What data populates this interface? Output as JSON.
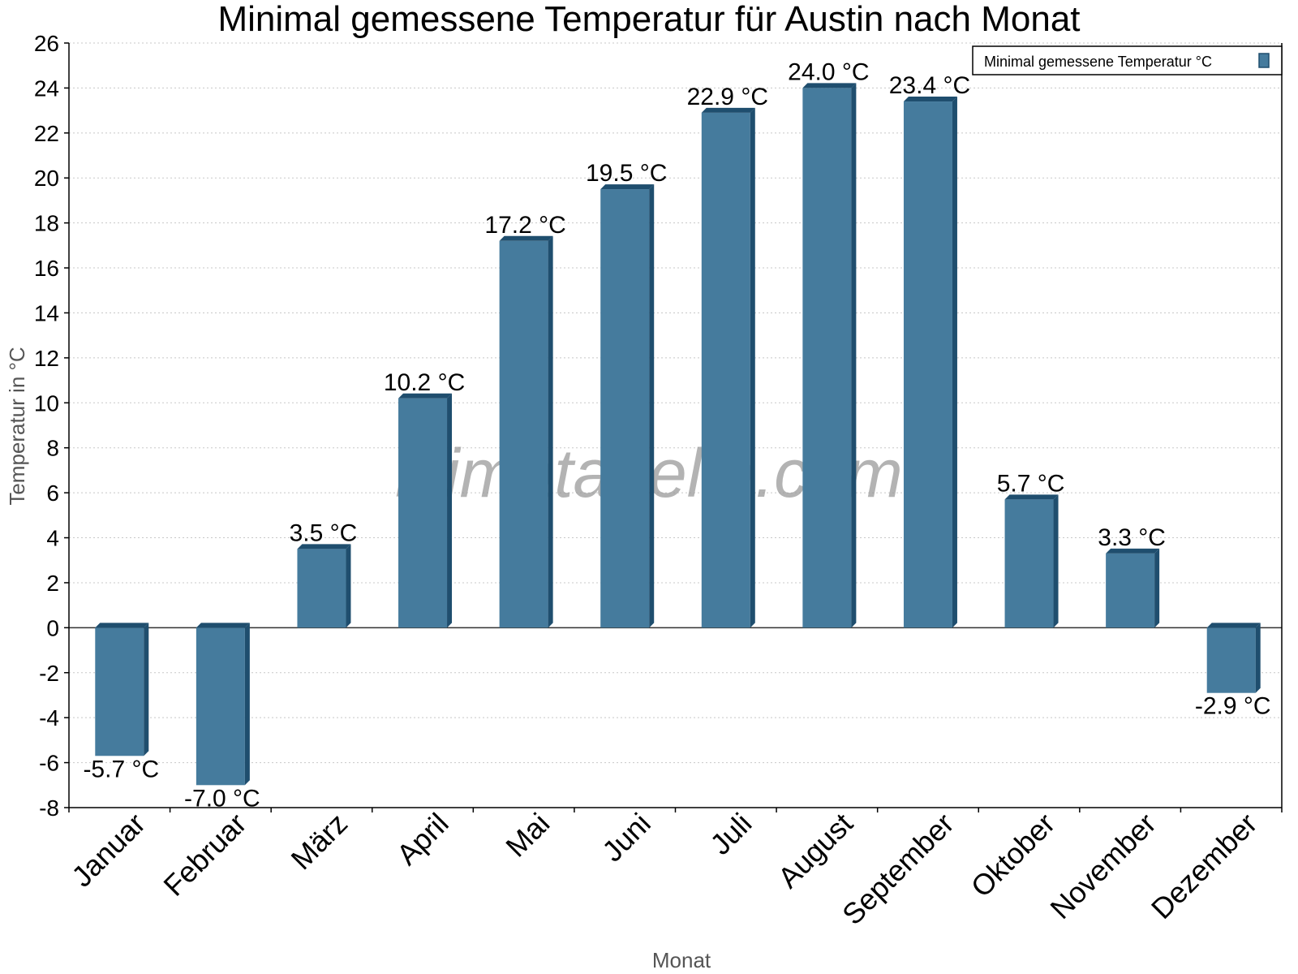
{
  "chart_data": {
    "type": "bar",
    "title": "Minimal gemessene Temperatur für Austin nach Monat",
    "xlabel": "Monat",
    "ylabel": "Temperatur in °C",
    "categories": [
      "Januar",
      "Februar",
      "März",
      "April",
      "Mai",
      "Juni",
      "Juli",
      "August",
      "September",
      "Oktober",
      "November",
      "Dezember"
    ],
    "series": [
      {
        "name": "Minimal gemessene Temperatur °C",
        "values": [
          -5.7,
          -7.0,
          3.5,
          10.2,
          17.2,
          19.5,
          22.9,
          24.0,
          23.4,
          5.7,
          3.3,
          -2.9
        ],
        "labels": [
          "-5.7 °C",
          "-7.0 °C",
          "3.5 °C",
          "10.2 °C",
          "17.2 °C",
          "19.5 °C",
          "22.9 °C",
          "24.0 °C",
          "23.4 °C",
          "5.7 °C",
          "3.3 °C",
          "-2.9 °C"
        ],
        "color": "#457b9d",
        "edge_color": "#1f4e6e"
      }
    ],
    "ylim": [
      -8,
      26
    ],
    "yticks": [
      -8,
      -6,
      -4,
      -2,
      0,
      2,
      4,
      6,
      8,
      10,
      12,
      14,
      16,
      18,
      20,
      22,
      24,
      26
    ],
    "grid": true,
    "legend": "top-right",
    "watermark": "klimatabelle.com"
  }
}
